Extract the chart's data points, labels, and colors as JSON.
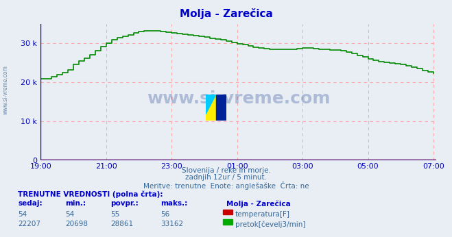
{
  "title": "Molja - Zarečica",
  "bg_color": "#e8eef4",
  "plot_bg_color": "#e8eef4",
  "grid_color": "#ffaaaa",
  "axis_color": "#0000bb",
  "title_color": "#0000cc",
  "xlim": [
    0,
    145
  ],
  "ylim": [
    0,
    35000
  ],
  "yticks": [
    0,
    10000,
    20000,
    30000
  ],
  "ytick_labels": [
    "0",
    "10 k",
    "20 k",
    "30 k"
  ],
  "xtick_positions": [
    0,
    24,
    48,
    72,
    96,
    120,
    144
  ],
  "xtick_labels": [
    "19:00",
    "21:00",
    "23:00",
    "01:00",
    "03:00",
    "05:00",
    "07:00"
  ],
  "watermark_text": "www.si-vreme.com",
  "watermark_color": "#1a3a8a",
  "side_text": "www.si-vreme.com",
  "subtitle1": "Slovenija / reke in morje.",
  "subtitle2": "zadnjih 12ur / 5 minut.",
  "subtitle3": "Meritve: trenutne  Enote: anglešaške  Črta: ne",
  "subtitle_color": "#336699",
  "bottom_header": "TRENUTNE VREDNOSTI (polna črta):",
  "col_headers": [
    "sedaj:",
    "min.:",
    "povpr.:",
    "maks.:",
    "Molja - Zarečica"
  ],
  "row1_vals": [
    "54",
    "54",
    "55",
    "56"
  ],
  "row2_vals": [
    "22207",
    "20698",
    "28861",
    "33162"
  ],
  "legend1_color": "#cc0000",
  "legend1_label": "temperatura[F]",
  "legend2_color": "#00aa00",
  "legend2_label": "pretok[čevelj3/min]",
  "green_line_color": "#008800",
  "red_line_color": "#880000",
  "pretok_x": [
    0,
    2,
    4,
    6,
    8,
    10,
    12,
    14,
    16,
    18,
    20,
    22,
    24,
    26,
    28,
    30,
    32,
    34,
    36,
    38,
    40,
    42,
    44,
    46,
    48,
    50,
    52,
    54,
    56,
    58,
    60,
    62,
    64,
    66,
    68,
    70,
    72,
    74,
    76,
    78,
    80,
    82,
    84,
    86,
    88,
    90,
    92,
    94,
    96,
    98,
    100,
    102,
    104,
    106,
    108,
    110,
    112,
    114,
    116,
    118,
    120,
    122,
    124,
    126,
    128,
    130,
    132,
    134,
    136,
    138,
    140,
    142,
    144
  ],
  "pretok_y": [
    20800,
    20900,
    21400,
    21900,
    22500,
    23200,
    24500,
    25500,
    26200,
    27000,
    28000,
    29200,
    30000,
    30800,
    31400,
    31800,
    32200,
    32600,
    33000,
    33100,
    33162,
    33100,
    33050,
    32900,
    32700,
    32500,
    32300,
    32100,
    31900,
    31700,
    31500,
    31300,
    31100,
    30900,
    30600,
    30200,
    29800,
    29600,
    29300,
    29000,
    28800,
    28600,
    28500,
    28500,
    28500,
    28500,
    28500,
    28600,
    28700,
    28700,
    28600,
    28500,
    28400,
    28300,
    28200,
    28000,
    27700,
    27300,
    26900,
    26500,
    26000,
    25600,
    25300,
    25100,
    24900,
    24700,
    24500,
    24200,
    23900,
    23500,
    23000,
    22600,
    22207
  ],
  "temp_y": 54
}
